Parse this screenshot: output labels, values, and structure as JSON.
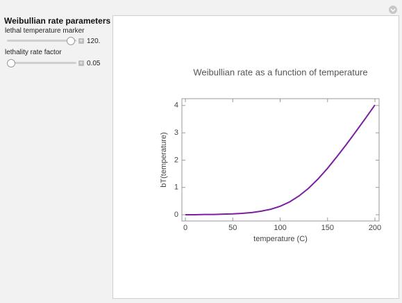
{
  "controls": {
    "title": "Weibullian rate parameters",
    "sliders": [
      {
        "label": "lethal temperature marker",
        "value": "120."
      },
      {
        "label": "lethality rate factor",
        "value": "0.05"
      }
    ]
  },
  "chart_data": {
    "type": "line",
    "title": "Weibullian rate as a function of temperature",
    "x_label": "temperature (C)",
    "y_label": "bT(temperature)",
    "x": [
      0,
      10,
      20,
      30,
      40,
      50,
      60,
      70,
      80,
      90,
      100,
      110,
      120,
      130,
      140,
      150,
      160,
      170,
      180,
      190,
      200
    ],
    "series": [
      {
        "color": "#7b1fa2",
        "values": [
          0.0,
          0.0,
          0.01,
          0.01,
          0.02,
          0.03,
          0.05,
          0.08,
          0.13,
          0.2,
          0.31,
          0.47,
          0.69,
          0.97,
          1.31,
          1.7,
          2.13,
          2.58,
          3.05,
          3.53,
          4.02
        ]
      }
    ],
    "xlim": [
      -3.7,
      204.4
    ],
    "ylim": [
      -0.23,
      4.25
    ],
    "xticks": [
      0,
      50,
      100,
      150,
      200
    ],
    "yticks": [
      0,
      1,
      2,
      3,
      4
    ]
  }
}
